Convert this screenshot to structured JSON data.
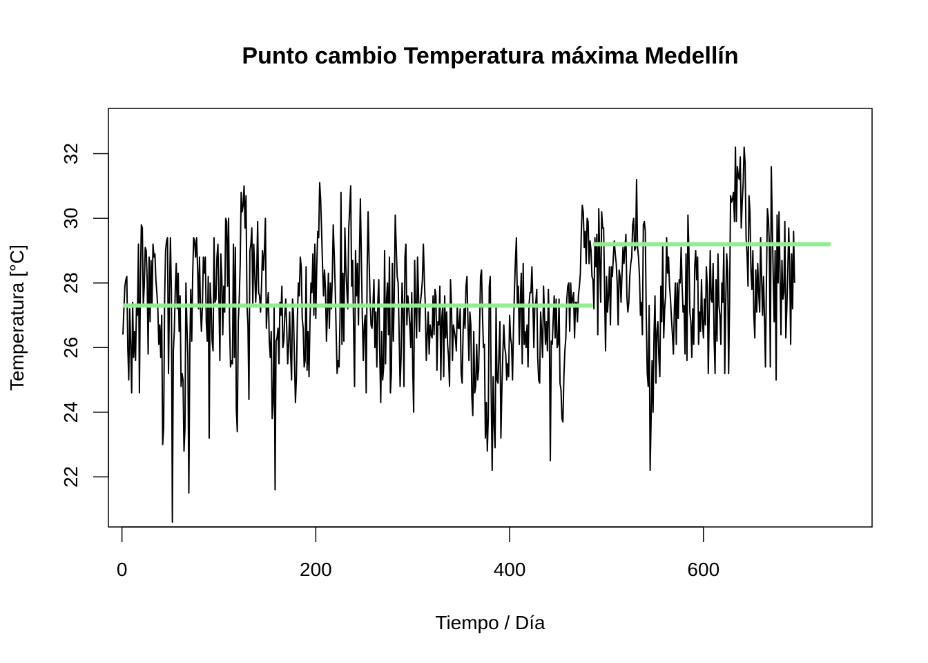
{
  "chart_data": {
    "type": "line",
    "title": "Punto cambio Temperatura máxima Medellín",
    "xlabel": "Tiempo / Día",
    "ylabel": "Temperatura [°C]",
    "xlim": [
      -14,
      774
    ],
    "ylim": [
      20.45,
      33.4
    ],
    "xticks": [
      "0",
      "200",
      "400",
      "600"
    ],
    "yticks": [
      "22",
      "24",
      "26",
      "28",
      "30",
      "32"
    ],
    "grid": false,
    "legend": "none",
    "colors": {
      "series": "#000000",
      "segments": "#90EE90"
    },
    "series": [
      {
        "values": [
          26.4,
          27.2,
          27.9,
          28.1,
          28.2,
          26.0,
          25.0,
          27.2,
          26.1,
          24.6,
          27.4,
          25.7,
          26.5,
          25.6,
          27.3,
          27.0,
          29.2,
          24.6,
          28.0,
          29.8,
          29.7,
          27.3,
          27.9,
          29.1,
          29.0,
          28.1,
          25.8,
          28.8,
          26.8,
          28.7,
          27.3,
          29.2,
          28.8,
          28.9,
          28.1,
          27.7,
          27.2,
          26.1,
          26.7,
          25.7,
          27.0,
          23.0,
          23.5,
          27.5,
          29.0,
          29.3,
          29.4,
          25.2,
          27.6,
          29.4,
          27.7,
          20.6,
          25.9,
          26.5,
          27.8,
          28.6,
          27.2,
          28.3,
          26.5,
          27.6,
          24.8,
          25.2,
          25.0,
          22.8,
          23.5,
          28.0,
          26.7,
          25.7,
          21.5,
          25.9,
          27.8,
          26.2,
          28.3,
          29.4,
          29.3,
          28.8,
          29.4,
          28.5,
          27.2,
          28.8,
          27.2,
          26.5,
          27.3,
          28.8,
          28.3,
          28.8,
          26.8,
          26.2,
          28.2,
          23.2,
          28.0,
          27.3,
          26.2,
          25.9,
          29.4,
          27.4,
          27.5,
          28.8,
          29.2,
          27.6,
          25.6,
          28.9,
          28.2,
          26.4,
          27.9,
          27.1,
          30.0,
          29.9,
          27.9,
          30.0,
          26.8,
          25.4,
          25.6,
          25.5,
          29.2,
          25.7,
          29.1,
          24.1,
          23.4,
          26.8,
          27.5,
          28.6,
          30.8,
          30.2,
          30.4,
          31.0,
          29.7,
          30.7,
          27.3,
          26.7,
          24.4,
          29.0,
          29.2,
          29.7,
          27.3,
          29.2,
          28.3,
          27.4,
          28.2,
          29.9,
          27.7,
          27.6,
          27.1,
          27.9,
          29.0,
          28.4,
          29.0,
          30.0,
          26.6,
          27.3,
          27.7,
          26.2,
          25.7,
          26.5,
          23.8,
          24.3,
          27.3,
          21.6,
          26.2,
          26.3,
          26.6,
          25.5,
          27.4,
          27.0,
          27.9,
          26.0,
          26.2,
          27.0,
          27.5,
          26.6,
          25.5,
          26.1,
          27.1,
          25.8,
          25.0,
          27.5,
          27.0,
          25.6,
          24.3,
          25.1,
          26.9,
          28.0,
          27.6,
          28.8,
          28.5,
          26.9,
          26.6,
          25.4,
          25.6,
          28.5,
          25.3,
          26.5,
          25.1,
          26.8,
          28.0,
          27.7,
          28.9,
          27.0,
          29.2,
          26.9,
          28.5,
          29.6,
          29.4,
          31.1,
          30.6,
          29.6,
          28.5,
          27.6,
          28.4,
          27.8,
          26.2,
          27.1,
          28.3,
          26.6,
          28.0,
          27.2,
          28.1,
          29.8,
          28.9,
          27.9,
          26.5,
          25.2,
          25.6,
          25.4,
          26.9,
          30.8,
          26.1,
          28.3,
          26.2,
          29.7,
          28.5,
          27.8,
          27.2,
          29.7,
          30.3,
          31.0,
          27.9,
          28.7,
          26.6,
          24.8,
          29.0,
          27.6,
          28.6,
          26.7,
          28.8,
          30.6,
          28.8,
          27.0,
          25.6,
          26.7,
          27.0,
          24.6,
          28.4,
          30.2,
          28.7,
          27.5,
          26.7,
          26.6,
          27.3,
          28.1,
          26.0,
          27.1,
          25.4,
          27.4,
          28.1,
          25.8,
          24.3,
          26.5,
          25.0,
          25.4,
          29.0,
          25.5,
          27.5,
          28.0,
          26.4,
          28.8,
          24.6,
          25.2,
          28.6,
          26.2,
          27.7,
          30.1,
          29.1,
          28.2,
          28.0,
          26.4,
          24.8,
          25.7,
          28.0,
          27.2,
          24.8,
          28.8,
          29.2,
          26.7,
          27.6,
          27.2,
          26.7,
          26.0,
          27.7,
          25.4,
          24.0,
          28.7,
          27.2,
          26.3,
          28.8,
          27.6,
          26.5,
          27.4,
          27.7,
          28.1,
          29.2,
          28.1,
          27.3,
          25.6,
          26.4,
          27.1,
          25.8,
          26.7,
          26.4,
          26.3,
          27.6,
          26.4,
          27.8,
          27.6,
          25.3,
          26.8,
          26.7,
          27.9,
          25.0,
          26.9,
          27.3,
          25.1,
          27.6,
          26.3,
          27.1,
          26.1,
          25.7,
          24.8,
          28.1,
          27.3,
          25.6,
          26.7,
          26.5,
          26.3,
          25.9,
          27.3,
          26.6,
          26.6,
          27.2,
          25.2,
          24.9,
          26.5,
          27.2,
          26.6,
          27.9,
          28.2,
          26.8,
          25.6,
          27.1,
          26.7,
          24.5,
          23.9,
          26.5,
          24.6,
          24.8,
          26.1,
          25.0,
          25.3,
          26.6,
          28.2,
          28.4,
          27.0,
          26.0,
          26.1,
          23.2,
          24.3,
          22.8,
          23.9,
          27.9,
          28.2,
          24.6,
          22.2,
          25.1,
          23.6,
          22.9,
          27.3,
          25.0,
          24.9,
          25.8,
          26.8,
          23.2,
          24.7,
          25.8,
          26.7,
          26.0,
          25.8,
          25.0,
          25.5,
          25.1,
          27.0,
          26.3,
          26.1,
          25.0,
          26.6,
          27.8,
          28.7,
          29.4,
          27.3,
          27.9,
          26.1,
          27.4,
          28.3,
          25.5,
          28.6,
          26.1,
          26.5,
          26.0,
          26.7,
          25.4,
          27.3,
          27.7,
          27.7,
          28.5,
          27.4,
          26.0,
          27.3,
          27.4,
          27.8,
          25.7,
          25.0,
          24.9,
          27.1,
          26.5,
          25.7,
          27.9,
          27.0,
          26.1,
          26.8,
          25.9,
          27.8,
          26.6,
          22.5,
          26.2,
          26.1,
          26.9,
          27.6,
          26.3,
          27.5,
          26.0,
          26.1,
          27.5,
          24.9,
          24.7,
          23.8,
          23.7,
          25.1,
          25.9,
          26.3,
          27.5,
          27.9,
          28.0,
          26.5,
          28.0,
          27.3,
          27.5,
          27.7,
          26.3,
          27.4,
          27.4,
          26.8,
          27.6,
          27.9,
          28.3,
          29.6,
          30.4,
          30.2,
          29.1,
          29.6,
          28.6,
          30.0,
          29.9,
          28.6,
          29.3,
          29.0,
          28.2,
          28.1,
          27.2,
          29.4,
          28.5,
          29.5,
          26.4,
          30.3,
          28.7,
          27.4,
          30.2,
          29.7,
          29.7,
          27.7,
          25.9,
          28.2,
          27.1,
          27.6,
          28.5,
          26.7,
          28.5,
          28.2,
          28.8,
          29.3,
          28.9,
          28.6,
          28.0,
          26.7,
          28.4,
          28.2,
          27.4,
          28.3,
          29.1,
          28.6,
          29.1,
          29.5,
          27.6,
          27.1,
          27.4,
          28.2,
          28.6,
          28.8,
          29.8,
          30.0,
          29.0,
          29.1,
          31.2,
          29.1,
          28.8,
          28.2,
          27.0,
          27.4,
          26.4,
          29.8,
          29.9,
          29.6,
          27.0,
          25.2,
          24.8,
          27.3,
          22.2,
          23.8,
          25.6,
          24.0,
          26.4,
          27.6,
          24.9,
          26.5,
          26.8,
          25.7,
          25.1,
          27.9,
          26.8,
          29.2,
          26.3,
          27.2,
          27.6,
          29.4,
          28.3,
          28.8,
          27.9,
          27.5,
          26.9,
          26.4,
          25.8,
          27.2,
          28.0,
          26.1,
          28.0,
          26.9,
          28.1,
          28.0,
          29.1,
          27.9,
          27.1,
          27.3,
          25.8,
          28.9,
          25.6,
          30.1,
          29.0,
          27.1,
          26.8,
          25.7,
          27.2,
          26.1,
          28.5,
          29.0,
          28.1,
          28.8,
          26.1,
          27.1,
          26.5,
          28.1,
          26.8,
          26.3,
          27.5,
          26.7,
          28.5,
          27.9,
          25.2,
          27.1,
          29.0,
          27.5,
          27.4,
          28.6,
          26.3,
          25.2,
          28.1,
          26.2,
          28.9,
          27.3,
          27.0,
          26.1,
          28.0,
          27.4,
          29.1,
          25.2,
          27.4,
          28.9,
          28.3,
          25.2,
          27.5,
          30.7,
          30.5,
          30.6,
          30.8,
          29.9,
          32.2,
          29.9,
          31.6,
          31.3,
          31.2,
          31.9,
          29.7,
          30.5,
          31.1,
          32.2,
          31.7,
          29.4,
          28.9,
          27.9,
          30.7,
          30.2,
          28.4,
          27.8,
          29.0,
          27.0,
          26.3,
          28.4,
          27.1,
          28.6,
          27.7,
          27.1,
          29.4,
          28.2,
          27.0,
          28.2,
          26.9,
          25.4,
          28.1,
          30.3,
          30.0,
          29.2,
          25.4,
          31.6,
          29.9,
          28.2,
          26.8,
          29.0,
          25.0,
          30.1,
          28.0,
          30.2,
          28.3,
          26.4,
          28.7,
          27.5,
          27.7,
          29.9,
          26.3,
          27.2,
          28.3,
          29.7,
          28.5,
          26.1,
          28.9,
          27.2,
          29.6,
          28.0
        ],
        "style": "thin line"
      }
    ],
    "segments": [
      {
        "x0": 1,
        "x1": 486,
        "value": 27.3
      },
      {
        "x0": 486,
        "x1": 731,
        "value": 29.2
      }
    ]
  }
}
